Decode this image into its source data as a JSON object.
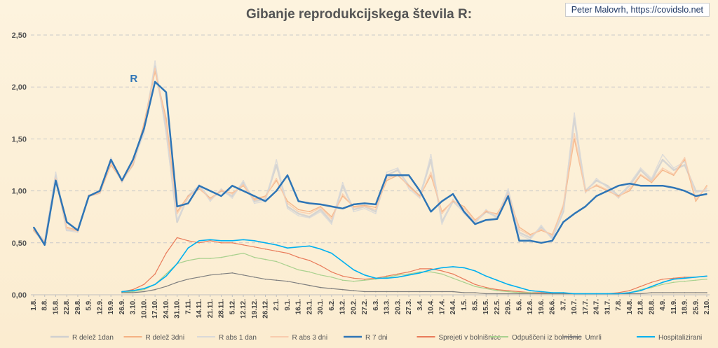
{
  "header": {
    "title": "Gibanje reprodukcijskega števila R:",
    "credit": "Peter Malovrh, https://covidslo.net"
  },
  "annotation": {
    "label": "R",
    "color": "#2e75b6"
  },
  "chart_data": {
    "type": "line",
    "title": "Gibanje reprodukcijskega števila R:",
    "ylim": [
      0,
      2.5
    ],
    "y_ticks": [
      "0,00",
      "0,50",
      "1,00",
      "1,50",
      "2,00",
      "2,50"
    ],
    "grid": "horizontal dashed",
    "legend_position": "bottom",
    "categories": [
      "1.8.",
      "8.8.",
      "15.8.",
      "22.8.",
      "29.8.",
      "5.9.",
      "12.9.",
      "19.9.",
      "26.9.",
      "3.10.",
      "10.10.",
      "17.10.",
      "24.10.",
      "31.10.",
      "7.11.",
      "14.11.",
      "21.11.",
      "28.11.",
      "5.12.",
      "12.12.",
      "19.12.",
      "26.12.",
      "2.1.",
      "9.1.",
      "16.1.",
      "23.1.",
      "30.1.",
      "6.2.",
      "13.2.",
      "20.2.",
      "27.2.",
      "6.3.",
      "13.3.",
      "20.3.",
      "27.3.",
      "3.4.",
      "10.4.",
      "17.4.",
      "24.4.",
      "1.5.",
      "8.5.",
      "15.5.",
      "22.5.",
      "29.5.",
      "5.6.",
      "12.6.",
      "19.6.",
      "26.6.",
      "3.7.",
      "10.7.",
      "17.7.",
      "24.7.",
      "31.7.",
      "7.8.",
      "14.8.",
      "21.8.",
      "28.8.",
      "4.9.",
      "11.9.",
      "18.9.",
      "25.9.",
      "2.10."
    ],
    "series": [
      {
        "name": "R delež 1dan",
        "color": "#d0d0d0",
        "width": 2.5,
        "values": [
          0.62,
          0.5,
          1.15,
          0.62,
          0.62,
          0.95,
          0.98,
          1.3,
          1.1,
          1.25,
          1.6,
          2.2,
          1.6,
          0.7,
          0.95,
          1.05,
          0.92,
          1.0,
          0.95,
          1.08,
          0.9,
          0.92,
          1.25,
          0.85,
          0.78,
          0.75,
          0.82,
          0.7,
          1.05,
          0.82,
          0.85,
          0.8,
          1.15,
          1.2,
          1.05,
          0.95,
          1.3,
          0.7,
          0.9,
          0.8,
          0.7,
          0.8,
          0.75,
          1.0,
          0.6,
          0.55,
          0.65,
          0.55,
          0.8,
          1.7,
          1.0,
          1.1,
          1.05,
          0.95,
          1.05,
          1.2,
          1.1,
          1.3,
          1.2,
          1.25,
          1.0,
          1.0
        ]
      },
      {
        "name": "R delež 3dni",
        "color": "#f4b183",
        "width": 1.5,
        "values": [
          0.62,
          0.5,
          1.1,
          0.65,
          0.62,
          0.95,
          0.98,
          1.25,
          1.1,
          1.25,
          1.65,
          2.15,
          1.7,
          0.8,
          0.95,
          1.02,
          0.93,
          1.0,
          0.98,
          1.05,
          0.92,
          0.95,
          1.1,
          0.9,
          0.82,
          0.8,
          0.85,
          0.75,
          0.95,
          0.85,
          0.86,
          0.84,
          1.1,
          1.15,
          1.05,
          0.95,
          1.15,
          0.8,
          0.9,
          0.85,
          0.72,
          0.8,
          0.78,
          0.95,
          0.65,
          0.58,
          0.62,
          0.58,
          0.85,
          1.5,
          1.0,
          1.05,
          1.0,
          0.95,
          1.0,
          1.15,
          1.08,
          1.2,
          1.15,
          1.3,
          0.9,
          1.05
        ]
      },
      {
        "name": "R abs 1 dan",
        "color": "#d9d9d9",
        "width": 1.5,
        "values": [
          0.64,
          0.52,
          1.18,
          0.62,
          0.6,
          0.96,
          0.99,
          1.32,
          1.08,
          1.28,
          1.55,
          2.25,
          1.55,
          0.72,
          0.93,
          1.06,
          0.9,
          1.02,
          0.93,
          1.1,
          0.88,
          0.9,
          1.3,
          0.83,
          0.76,
          0.74,
          0.8,
          0.68,
          1.08,
          0.8,
          0.83,
          0.78,
          1.18,
          1.22,
          1.02,
          0.93,
          1.35,
          0.68,
          0.92,
          0.78,
          0.68,
          0.82,
          0.73,
          1.02,
          0.58,
          0.53,
          0.67,
          0.53,
          0.82,
          1.75,
          0.98,
          1.12,
          1.03,
          0.93,
          1.07,
          1.22,
          1.12,
          1.35,
          1.22,
          1.28,
          0.98,
          1.02
        ]
      },
      {
        "name": "R abs 3 dni",
        "color": "#f8cbad",
        "width": 1.5,
        "values": [
          0.63,
          0.51,
          1.12,
          0.64,
          0.61,
          0.96,
          0.98,
          1.27,
          1.09,
          1.26,
          1.62,
          2.18,
          1.65,
          0.78,
          0.94,
          1.03,
          0.92,
          1.01,
          0.97,
          1.06,
          0.91,
          0.94,
          1.12,
          0.88,
          0.8,
          0.78,
          0.84,
          0.73,
          0.97,
          0.84,
          0.85,
          0.82,
          1.12,
          1.16,
          1.04,
          0.94,
          1.18,
          0.78,
          0.91,
          0.83,
          0.71,
          0.81,
          0.77,
          0.97,
          0.63,
          0.57,
          0.63,
          0.57,
          0.87,
          1.55,
          0.99,
          1.06,
          1.01,
          0.94,
          1.02,
          1.16,
          1.09,
          1.22,
          1.16,
          1.32,
          0.92,
          1.04
        ]
      },
      {
        "name": "R 7 dni",
        "color": "#2e75b6",
        "width": 2.5,
        "values": [
          0.65,
          0.48,
          1.1,
          0.7,
          0.62,
          0.95,
          1.0,
          1.3,
          1.1,
          1.3,
          1.6,
          2.05,
          1.95,
          0.85,
          0.88,
          1.05,
          1.0,
          0.95,
          1.05,
          1.0,
          0.95,
          0.9,
          1.0,
          1.15,
          0.9,
          0.88,
          0.87,
          0.85,
          0.83,
          0.87,
          0.88,
          0.87,
          1.15,
          1.15,
          1.15,
          1.0,
          0.8,
          0.9,
          0.97,
          0.8,
          0.68,
          0.72,
          0.73,
          0.95,
          0.52,
          0.52,
          0.5,
          0.52,
          0.7,
          0.78,
          0.85,
          0.95,
          1.0,
          1.05,
          1.07,
          1.05,
          1.05,
          1.05,
          1.03,
          1.0,
          0.95,
          0.97
        ]
      },
      {
        "name": "Sprejeti v bolnišnice",
        "color": "#e97b5a",
        "width": 1.2,
        "values": [
          null,
          null,
          null,
          null,
          null,
          null,
          null,
          null,
          0.03,
          0.05,
          0.1,
          0.2,
          0.4,
          0.55,
          0.52,
          0.5,
          0.52,
          0.5,
          0.5,
          0.48,
          0.46,
          0.44,
          0.42,
          0.4,
          0.36,
          0.33,
          0.28,
          0.22,
          0.18,
          0.16,
          0.15,
          0.16,
          0.18,
          0.2,
          0.22,
          0.25,
          0.25,
          0.23,
          0.2,
          0.15,
          0.1,
          0.07,
          0.05,
          0.04,
          0.03,
          0.02,
          0.02,
          0.01,
          0.01,
          0.01,
          0.01,
          0.01,
          0.01,
          0.02,
          0.04,
          0.08,
          0.12,
          0.15,
          0.16,
          0.17,
          0.17,
          0.18
        ]
      },
      {
        "name": "Odpuščeni iz bolnišnic",
        "color": "#a9d18e",
        "width": 1.2,
        "values": [
          null,
          null,
          null,
          null,
          null,
          null,
          null,
          null,
          0.02,
          0.03,
          0.05,
          0.1,
          0.2,
          0.3,
          0.33,
          0.35,
          0.35,
          0.36,
          0.38,
          0.4,
          0.36,
          0.34,
          0.32,
          0.28,
          0.24,
          0.22,
          0.19,
          0.17,
          0.14,
          0.13,
          0.14,
          0.15,
          0.17,
          0.19,
          0.2,
          0.22,
          0.22,
          0.2,
          0.16,
          0.12,
          0.08,
          0.06,
          0.04,
          0.03,
          0.02,
          0.02,
          0.01,
          0.01,
          0.01,
          0.01,
          0.01,
          0.01,
          0.01,
          0.01,
          0.02,
          0.05,
          0.07,
          0.1,
          0.12,
          0.13,
          0.14,
          0.15
        ]
      },
      {
        "name": "Umrli",
        "color": "#7f7f7f",
        "width": 1.2,
        "values": [
          null,
          null,
          null,
          null,
          null,
          null,
          null,
          null,
          0.02,
          0.02,
          0.03,
          0.05,
          0.08,
          0.12,
          0.15,
          0.17,
          0.19,
          0.2,
          0.21,
          0.19,
          0.17,
          0.15,
          0.14,
          0.13,
          0.11,
          0.09,
          0.07,
          0.06,
          0.05,
          0.04,
          0.03,
          0.03,
          0.03,
          0.03,
          0.03,
          0.03,
          0.03,
          0.03,
          0.03,
          0.02,
          0.02,
          0.01,
          0.01,
          0.01,
          0.01,
          0.01,
          0.01,
          0.01,
          0.01,
          0.01,
          0.01,
          0.01,
          0.01,
          0.01,
          0.01,
          0.01,
          0.02,
          0.02,
          0.02,
          0.02,
          0.02,
          0.02
        ]
      },
      {
        "name": "Hospitalizirani",
        "color": "#00b0f0",
        "width": 1.6,
        "values": [
          null,
          null,
          null,
          null,
          null,
          null,
          null,
          null,
          0.03,
          0.04,
          0.06,
          0.1,
          0.18,
          0.3,
          0.45,
          0.52,
          0.53,
          0.52,
          0.52,
          0.53,
          0.52,
          0.5,
          0.48,
          0.45,
          0.46,
          0.47,
          0.44,
          0.4,
          0.32,
          0.24,
          0.19,
          0.16,
          0.16,
          0.17,
          0.19,
          0.21,
          0.24,
          0.26,
          0.27,
          0.26,
          0.23,
          0.18,
          0.14,
          0.1,
          0.07,
          0.04,
          0.03,
          0.02,
          0.02,
          0.01,
          0.01,
          0.01,
          0.01,
          0.01,
          0.02,
          0.04,
          0.08,
          0.12,
          0.15,
          0.16,
          0.17,
          0.18
        ]
      }
    ]
  }
}
